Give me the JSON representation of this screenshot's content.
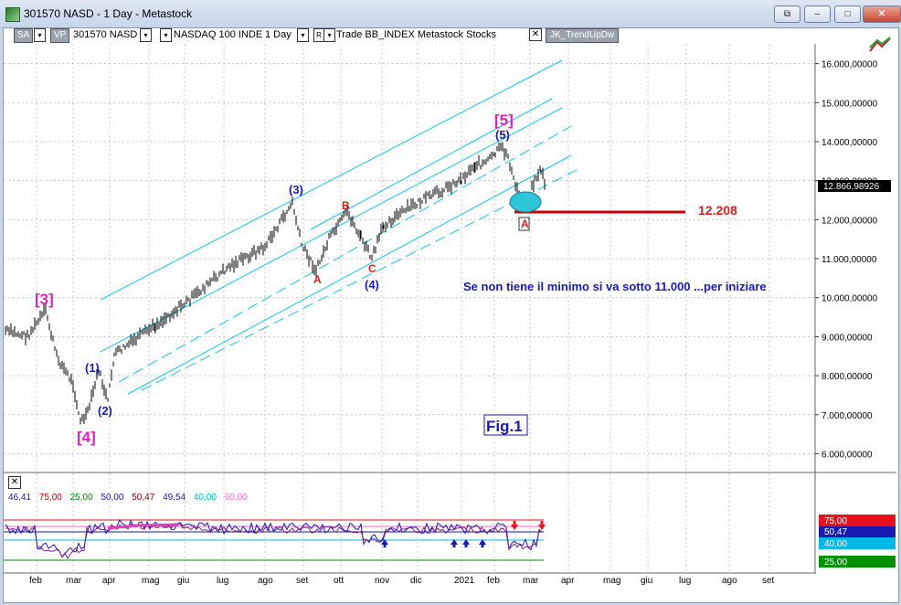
{
  "window": {
    "title": "301570 NASD - 1 Day - Metastock",
    "buttons": [
      "⧉",
      "–",
      "□",
      "✕"
    ]
  },
  "toolbar": {
    "sa_label": "SA",
    "vp_label": "VP",
    "symbol": "301570 NASD",
    "drop_marker": "▾",
    "index_name": "NASDAQ 100 INDE",
    "period": "1 Day",
    "r_label": "R",
    "r_drop": "▾",
    "mode_text": "Trade  BB_INDEX  Metastock  Stocks",
    "close_glyph": "✕",
    "indicator": "JK_TrendUpDw"
  },
  "price_axis": {
    "labels": [
      "16.000,00000",
      "15.000,00000",
      "14.000,00000",
      "13.000,00000",
      "12.000,00000",
      "11.000,00000",
      "10.000,00000",
      "9.000,00000",
      "8.000,00000",
      "7.000,00000",
      "6.000,00000"
    ],
    "current_price": "12.866,98926"
  },
  "indicator_axis": {
    "labels": [
      "75,00",
      "40,00",
      "25,00"
    ],
    "hidden_label": "50,47",
    "colors": [
      "#e8101a",
      "#00b8e8",
      "#009000"
    ]
  },
  "time_axis": {
    "labels": [
      "feb",
      "mar",
      "apr",
      "mag",
      "giu",
      "lug",
      "ago",
      "set",
      "ott",
      "nov",
      "dic",
      "2021",
      "feb",
      "mar",
      "apr",
      "mag",
      "giu",
      "lug",
      "ago",
      "set"
    ]
  },
  "annotations": {
    "wave_3_major": "[3]",
    "wave_4_major": "[4]",
    "wave_5_major": "[5]",
    "wave_1": "(1)",
    "wave_2": "(2)",
    "wave_3": "(3)",
    "wave_4": "(4)",
    "wave_5": "(5)",
    "a_label": "A",
    "b_label": "B",
    "c_label": "C",
    "a_boxed": "A",
    "level": "12.208",
    "comment": "Se non tiene il minimo si va sotto 11.000 ...per iniziare",
    "fig": "Fig.1"
  },
  "indicator_legend": [
    {
      "text": "46,41",
      "color": "#1a1aa0"
    },
    {
      "text": "75,00",
      "color": "#c00000"
    },
    {
      "text": "25,00",
      "color": "#008000"
    },
    {
      "text": "50,00",
      "color": "#1a1aa0"
    },
    {
      "text": "50,47",
      "color": "#800000"
    },
    {
      "text": "49,54",
      "color": "#1a1aa0"
    },
    {
      "text": "40,00",
      "color": "#00c0e0"
    },
    {
      "text": "60,00",
      "color": "#ff66cc"
    }
  ],
  "indicator_close": "✕"
}
